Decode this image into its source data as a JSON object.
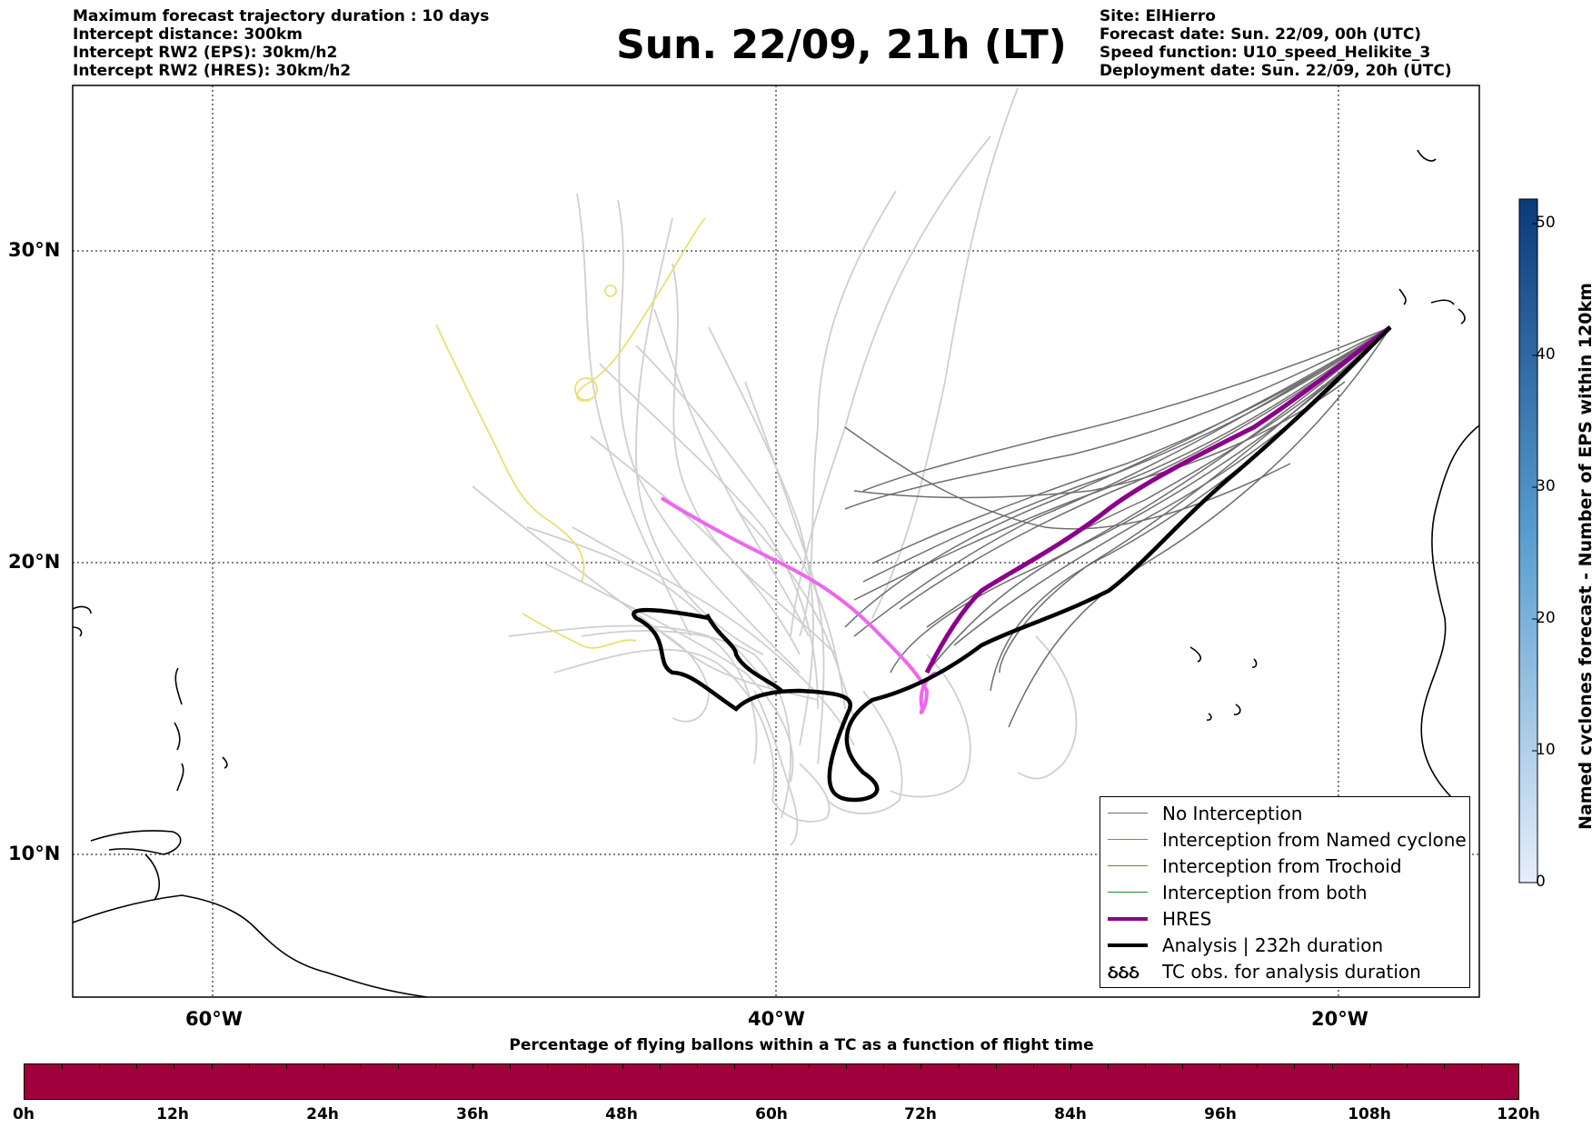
{
  "header_left": [
    "Maximum forecast trajectory duration : 10 days",
    "Intercept distance: 300km",
    "Intercept RW2 (EPS):  30km/h2",
    "Intercept RW2 (HRES): 30km/h2"
  ],
  "title": "Sun. 22/09, 21h (LT)",
  "header_right": [
    "Site: ElHierro",
    "Forecast date: Sun. 22/09, 00h (UTC)",
    "Speed function: U10_speed_Helikite_3",
    "Deployment date: Sun. 22/09, 20h (UTC)"
  ],
  "map": {
    "lat_labels": [
      "30°N",
      "20°N",
      "10°N"
    ],
    "lon_labels": [
      "60°W",
      "40°W",
      "20°W"
    ],
    "gridlines": "dotted",
    "colors": {
      "no_interception": "#6e6e6e",
      "eps_far": "#cfcfcf",
      "named_cyclone": "#e8602c",
      "trochoid": "#808020",
      "both": "#2a8a2a",
      "hres": "#8b008b",
      "hres_light": "#ee66ee",
      "analysis": "#000000",
      "yellow_track": "#e8e070",
      "coast": "#000000"
    }
  },
  "legend": {
    "items": [
      {
        "label": "No Interception",
        "color": "#6e6e6e",
        "style": "thin"
      },
      {
        "label": "Interception from Named cyclone",
        "color": "#e8602c",
        "style": "thin"
      },
      {
        "label": "Interception from Trochoid",
        "color": "#808020",
        "style": "thin"
      },
      {
        "label": "Interception from both",
        "color": "#2a8a2a",
        "style": "thin"
      },
      {
        "label": "HRES",
        "color": "#8b008b",
        "style": "thick"
      },
      {
        "label": "Analysis | 232h duration",
        "color": "#000000",
        "style": "thick"
      },
      {
        "label": "TC obs. for analysis duration",
        "color": "#000000",
        "style": "symbol",
        "symbol_text": "ઠઠઠ"
      }
    ]
  },
  "colorbar_right": {
    "title": "Named cyclones forecast - Number of EPS within 120km",
    "ticks": [
      "50",
      "40",
      "30",
      "20",
      "10",
      "0"
    ],
    "range": [
      0,
      52
    ],
    "color_low": "#e6eefa",
    "color_high": "#0b3a7a"
  },
  "colorbar_bottom": {
    "caption": "Percentage of flying ballons within a TC as a function of flight time",
    "ticks": [
      "0h",
      "12h",
      "24h",
      "36h",
      "48h",
      "60h",
      "72h",
      "84h",
      "96h",
      "108h",
      "120h"
    ],
    "color": "#a0003c"
  }
}
